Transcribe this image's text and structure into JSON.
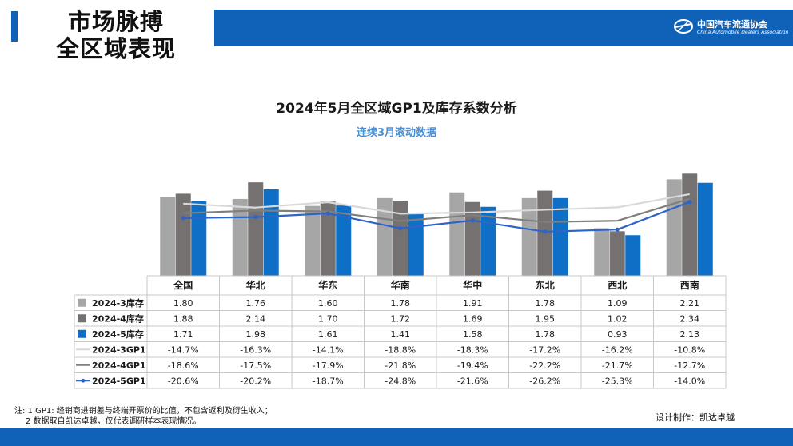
{
  "header": {
    "title_line1": "市场脉搏",
    "title_line2": "全区域表现",
    "logo_cn": "中国汽车流通协会",
    "logo_en": "China Automobile Dealers Association"
  },
  "chart_data": {
    "type": "bar",
    "title": "2024年5月全区域GP1及库存系数分析",
    "subtitle": "连续3月滚动数据",
    "categories": [
      "全国",
      "华北",
      "华东",
      "华南",
      "华中",
      "东北",
      "西北",
      "西南"
    ],
    "ylim": [
      0,
      2.4
    ],
    "gp1_ylim": [
      -30,
      0
    ],
    "bar_series": [
      {
        "name": "2024-3库存",
        "color": "#a6a6a6",
        "values": [
          1.8,
          1.76,
          1.6,
          1.78,
          1.91,
          1.78,
          1.09,
          2.21
        ],
        "labels": [
          "1.80",
          "1.76",
          "1.60",
          "1.78",
          "1.91",
          "1.78",
          "1.09",
          "2.21"
        ]
      },
      {
        "name": "2024-4库存",
        "color": "#767171",
        "values": [
          1.88,
          2.14,
          1.7,
          1.72,
          1.69,
          1.95,
          1.02,
          2.34
        ],
        "labels": [
          "1.88",
          "2.14",
          "1.70",
          "1.72",
          "1.69",
          "1.95",
          "1.02",
          "2.34"
        ]
      },
      {
        "name": "2024-5库存",
        "color": "#0f6fc6",
        "values": [
          1.71,
          1.98,
          1.61,
          1.41,
          1.58,
          1.78,
          0.93,
          2.13
        ],
        "labels": [
          "1.71",
          "1.98",
          "1.61",
          "1.41",
          "1.58",
          "1.78",
          "0.93",
          "2.13"
        ]
      }
    ],
    "line_series": [
      {
        "name": "2024-3GP1",
        "color": "#d9d9d9",
        "markers": false,
        "values": [
          -14.7,
          -16.3,
          -14.1,
          -18.8,
          -18.3,
          -17.2,
          -16.2,
          -10.8
        ],
        "labels": [
          "-14.7%",
          "-16.3%",
          "-14.1%",
          "-18.8%",
          "-18.3%",
          "-17.2%",
          "-16.2%",
          "-10.8%"
        ]
      },
      {
        "name": "2024-4GP1",
        "color": "#7f7f7f",
        "markers": false,
        "values": [
          -18.6,
          -17.5,
          -17.9,
          -21.8,
          -19.4,
          -22.2,
          -21.7,
          -12.7
        ],
        "labels": [
          "-18.6%",
          "-17.5%",
          "-17.9%",
          "-21.8%",
          "-19.4%",
          "-22.2%",
          "-21.7%",
          "-12.7%"
        ]
      },
      {
        "name": "2024-5GP1",
        "color": "#2e64c8",
        "markers": true,
        "values": [
          -20.6,
          -20.2,
          -18.7,
          -24.8,
          -21.6,
          -26.2,
          -25.3,
          -14.0
        ],
        "labels": [
          "-20.6%",
          "-20.2%",
          "-18.7%",
          "-24.8%",
          "-21.6%",
          "-26.2%",
          "-25.3%",
          "-14.0%"
        ]
      }
    ]
  },
  "footer": {
    "note_line1": "注: 1 GP1: 经销商进销差与终端开票价的比值，不包含返利及衍生收入；",
    "note_line2": "2 数据取自凯达卓越，仅代表调研样本表现情况。",
    "credit": "设计制作：凯达卓越"
  }
}
